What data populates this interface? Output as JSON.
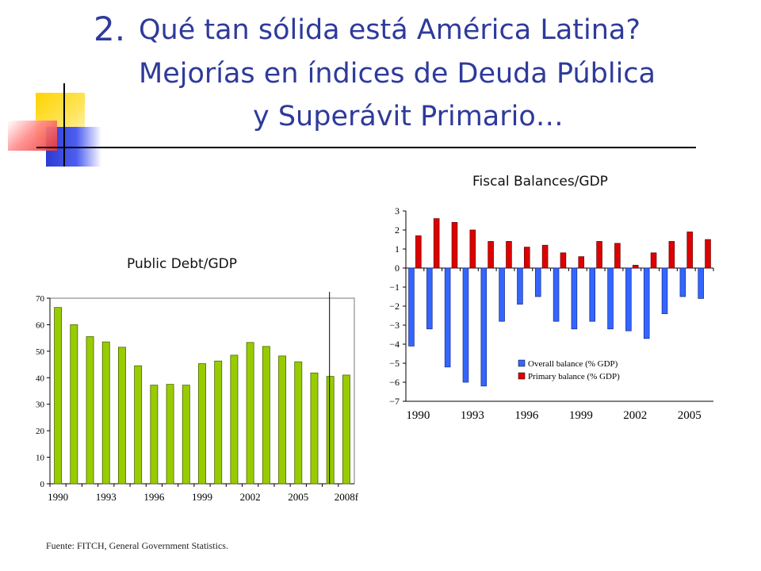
{
  "slide": {
    "title_number": "2.",
    "title_line1": "Qué tan sólida está América Latina?",
    "title_line2": "Mejorías en índices de Deuda Pública",
    "title_line3": "y Superávit Primario…",
    "source": "Fuente: FITCH, General Government Statistics.",
    "title_color": "#2e3a9b"
  },
  "chart_data": [
    {
      "type": "bar",
      "title": "Public Debt/GDP",
      "xlabel": "",
      "ylabel": "",
      "ylim": [
        0,
        70
      ],
      "yticks": [
        "0",
        "10",
        "20",
        "30",
        "40",
        "50",
        "60",
        "70"
      ],
      "categories": [
        "1990",
        "1991",
        "1992",
        "1993",
        "1994",
        "1995",
        "1996",
        "1997",
        "1998",
        "1999",
        "2000",
        "2001",
        "2002",
        "2003",
        "2004",
        "2005",
        "2006",
        "2007",
        "2008f"
      ],
      "xtick_labels": [
        "1990",
        "1993",
        "1996",
        "1999",
        "2002",
        "2005",
        "2008f"
      ],
      "values": [
        66.5,
        60,
        55.5,
        53.5,
        51.5,
        44.5,
        37.2,
        37.5,
        37.2,
        45.3,
        46.3,
        48.5,
        53.3,
        51.8,
        48.2,
        46,
        41.8,
        40.5,
        41
      ],
      "bar_color": "#99cc00",
      "grid": false
    },
    {
      "type": "bar",
      "title": "Fiscal Balances/GDP",
      "xlabel": "",
      "ylabel": "",
      "ylim": [
        -7,
        3
      ],
      "yticks": [
        "3",
        "2",
        "1",
        "0",
        "−1",
        "−2",
        "−3",
        "−4",
        "−5",
        "−6",
        "−7"
      ],
      "categories": [
        "1990",
        "1991",
        "1992",
        "1993",
        "1994",
        "1995",
        "1996",
        "1997",
        "1998",
        "1999",
        "2000",
        "2001",
        "2002",
        "2003",
        "2004",
        "2005",
        "2006"
      ],
      "xtick_labels": [
        "1990",
        "1993",
        "1996",
        "1999",
        "2002",
        "2005"
      ],
      "series": [
        {
          "name": "Overall balance (% GDP)",
          "color": "#3366ff",
          "values": [
            -4.1,
            -3.2,
            -5.2,
            -6,
            -6.2,
            -2.8,
            -1.9,
            -1.5,
            -2.8,
            -3.2,
            -2.8,
            -3.2,
            -3.3,
            -3.7,
            -2.4,
            -1.5,
            -1.6
          ]
        },
        {
          "name": "Primary balance (% GDP)",
          "color": "#dd0000",
          "values": [
            1.7,
            2.6,
            2.4,
            2,
            1.4,
            1.4,
            1.1,
            1.2,
            0.8,
            0.6,
            1.4,
            1.3,
            0.15,
            0.8,
            1.4,
            1.9,
            1.5
          ]
        }
      ],
      "legend": "bottom-right",
      "grid": false
    }
  ]
}
